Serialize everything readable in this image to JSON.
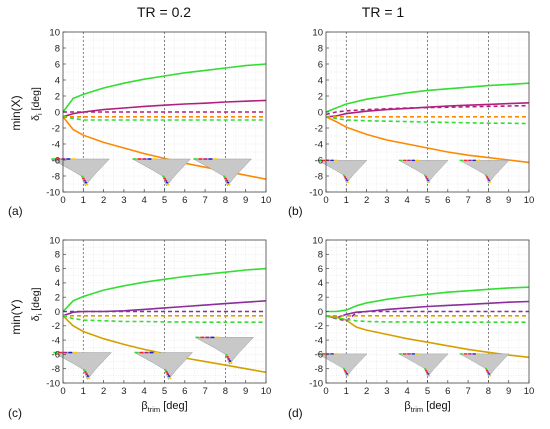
{
  "figure": {
    "col_titles": [
      "TR = 0.2",
      "TR = 1"
    ],
    "row_labels": [
      "min(X)",
      "min(Y)"
    ],
    "ylabel_main": "δ",
    "ylabel_sub": "i",
    "ylabel_unit": " [deg]",
    "xlabel_main": "β",
    "xlabel_sub": "trim",
    "xlabel_unit": " [deg]",
    "colors": {
      "green": "#33dd33",
      "magenta": "#b0207f",
      "orange": "#ff8800",
      "gold": "#d4a000",
      "purple": "#8a2f9a",
      "red": "#ff2020",
      "grid": "#dddddd",
      "vline": "#666666",
      "wing_fill": "#c8c8c8"
    },
    "icons": [
      "wing-planform-icon"
    ]
  },
  "chart_data": [
    {
      "type": "line",
      "panel": "(a)",
      "xlim": [
        0,
        10
      ],
      "ylim": [
        -10,
        10
      ],
      "xticks": [
        0,
        1,
        2,
        3,
        4,
        5,
        6,
        7,
        8,
        9,
        10
      ],
      "yticks": [
        -10,
        -8,
        -6,
        -4,
        -2,
        0,
        2,
        4,
        6,
        8,
        10
      ],
      "grid": true,
      "vlines": [
        1,
        5,
        8
      ],
      "x": [
        0,
        0.5,
        1,
        2,
        3,
        4,
        5,
        6,
        7,
        8,
        9,
        10
      ],
      "series": [
        {
          "color": "green",
          "dash": false,
          "values": [
            0,
            1.7,
            2.2,
            3.0,
            3.6,
            4.1,
            4.5,
            4.9,
            5.2,
            5.5,
            5.8,
            6.0
          ]
        },
        {
          "color": "magenta",
          "dash": false,
          "values": [
            -0.6,
            -0.2,
            0.0,
            0.3,
            0.5,
            0.7,
            0.85,
            1.0,
            1.1,
            1.25,
            1.35,
            1.45
          ]
        },
        {
          "color": "orange",
          "dash": false,
          "values": [
            -0.6,
            -2.2,
            -2.9,
            -3.8,
            -4.5,
            -5.2,
            -5.8,
            -6.4,
            -6.9,
            -7.4,
            -7.9,
            -8.4
          ]
        },
        {
          "color": "magenta",
          "dash": true,
          "values": [
            0,
            0,
            0,
            0,
            0,
            0,
            0,
            0,
            0,
            0,
            0,
            0
          ]
        },
        {
          "color": "orange",
          "dash": true,
          "values": [
            -0.6,
            -0.6,
            -0.6,
            -0.6,
            -0.6,
            -0.6,
            -0.6,
            -0.6,
            -0.6,
            -0.6,
            -0.6,
            -0.6
          ]
        },
        {
          "color": "green",
          "dash": true,
          "values": [
            -0.6,
            -0.8,
            -1.0,
            -1.0,
            -1.0,
            -1.0,
            -1.0,
            -1.0,
            -1.0,
            -1.0,
            -1.0,
            -1.0
          ]
        }
      ],
      "wings": [
        [
          1,
          5,
          8
        ]
      ]
    },
    {
      "type": "line",
      "panel": "(b)",
      "xlim": [
        0,
        10
      ],
      "ylim": [
        -10,
        10
      ],
      "xticks": [
        0,
        1,
        2,
        3,
        4,
        5,
        6,
        7,
        8,
        9,
        10
      ],
      "yticks": [
        -10,
        -8,
        -6,
        -4,
        -2,
        0,
        2,
        4,
        6,
        8,
        10
      ],
      "grid": true,
      "vlines": [
        1,
        5,
        8
      ],
      "x": [
        0,
        0.5,
        1,
        2,
        3,
        4,
        5,
        6,
        7,
        8,
        9,
        10
      ],
      "series": [
        {
          "color": "green",
          "dash": false,
          "values": [
            0,
            0.5,
            1.0,
            1.6,
            2.0,
            2.4,
            2.7,
            2.9,
            3.1,
            3.3,
            3.45,
            3.6
          ]
        },
        {
          "color": "magenta",
          "dash": false,
          "values": [
            -0.6,
            -0.5,
            -0.2,
            0.1,
            0.3,
            0.45,
            0.6,
            0.75,
            0.85,
            0.95,
            1.05,
            1.15
          ]
        },
        {
          "color": "orange",
          "dash": false,
          "values": [
            -0.6,
            -1.2,
            -1.9,
            -2.8,
            -3.5,
            -4.0,
            -4.5,
            -5.0,
            -5.4,
            -5.7,
            -6.0,
            -6.3
          ]
        },
        {
          "color": "magenta",
          "dash": true,
          "values": [
            -0.3,
            0,
            0.15,
            0.3,
            0.4,
            0.5,
            0.55,
            0.6,
            0.65,
            0.7,
            0.75,
            0.8
          ]
        },
        {
          "color": "orange",
          "dash": true,
          "values": [
            -0.6,
            -0.6,
            -0.6,
            -0.6,
            -0.6,
            -0.6,
            -0.6,
            -0.6,
            -0.6,
            -0.6,
            -0.6,
            -0.6
          ]
        },
        {
          "color": "green",
          "dash": true,
          "values": [
            -0.6,
            -0.8,
            -1.0,
            -1.1,
            -1.15,
            -1.2,
            -1.25,
            -1.3,
            -1.35,
            -1.4,
            -1.4,
            -1.45
          ]
        }
      ],
      "wings": [
        [
          1,
          5,
          8
        ]
      ]
    },
    {
      "type": "line",
      "panel": "(c)",
      "xlim": [
        0,
        10
      ],
      "ylim": [
        -10,
        10
      ],
      "xticks": [
        0,
        1,
        2,
        3,
        4,
        5,
        6,
        7,
        8,
        9,
        10
      ],
      "yticks": [
        -10,
        -8,
        -6,
        -4,
        -2,
        0,
        2,
        4,
        6,
        8,
        10
      ],
      "grid": true,
      "vlines": [
        1,
        5,
        8
      ],
      "x": [
        0,
        0.5,
        1,
        2,
        3,
        4,
        5,
        6,
        7,
        8,
        9,
        10
      ],
      "series": [
        {
          "color": "green",
          "dash": false,
          "values": [
            0,
            1.5,
            2.1,
            3.0,
            3.6,
            4.1,
            4.5,
            4.9,
            5.2,
            5.5,
            5.8,
            6.0
          ]
        },
        {
          "color": "purple",
          "dash": false,
          "values": [
            -0.6,
            -0.1,
            0,
            0,
            0.1,
            0.3,
            0.5,
            0.7,
            0.9,
            1.1,
            1.3,
            1.5
          ]
        },
        {
          "color": "gold",
          "dash": false,
          "values": [
            -0.6,
            -2.0,
            -2.8,
            -3.8,
            -4.6,
            -5.3,
            -5.9,
            -6.5,
            -7.0,
            -7.5,
            -8.0,
            -8.5
          ]
        },
        {
          "color": "purple",
          "dash": true,
          "values": [
            0,
            0,
            0,
            0,
            0,
            0,
            0,
            0,
            0,
            0,
            0,
            0
          ]
        },
        {
          "color": "gold",
          "dash": true,
          "values": [
            -0.6,
            -0.6,
            -0.6,
            -0.6,
            -0.6,
            -0.6,
            -0.6,
            -0.6,
            -0.6,
            -0.6,
            -0.6,
            -0.6
          ]
        },
        {
          "color": "green",
          "dash": true,
          "values": [
            -0.6,
            -1.0,
            -1.2,
            -1.3,
            -1.4,
            -1.4,
            -1.45,
            -1.45,
            -1.5,
            -1.5,
            -1.5,
            -1.5
          ]
        }
      ],
      "wings": [
        [
          8
        ],
        [
          1,
          5
        ]
      ]
    },
    {
      "type": "line",
      "panel": "(d)",
      "xlim": [
        0,
        10
      ],
      "ylim": [
        -10,
        10
      ],
      "xticks": [
        0,
        1,
        2,
        3,
        4,
        5,
        6,
        7,
        8,
        9,
        10
      ],
      "yticks": [
        -10,
        -8,
        -6,
        -4,
        -2,
        0,
        2,
        4,
        6,
        8,
        10
      ],
      "grid": true,
      "vlines": [
        1,
        5,
        8
      ],
      "x": [
        0,
        0.5,
        1,
        1.5,
        2,
        3,
        4,
        5,
        6,
        7,
        8,
        9,
        10
      ],
      "series": [
        {
          "color": "green",
          "dash": false,
          "values": [
            0,
            0,
            0.2,
            0.8,
            1.2,
            1.7,
            2.1,
            2.4,
            2.7,
            2.9,
            3.1,
            3.3,
            3.4
          ]
        },
        {
          "color": "purple",
          "dash": false,
          "values": [
            -0.6,
            -0.9,
            -0.4,
            -0.1,
            0,
            0.3,
            0.5,
            0.7,
            0.85,
            1.0,
            1.15,
            1.3,
            1.4
          ]
        },
        {
          "color": "gold",
          "dash": false,
          "values": [
            -0.6,
            -0.8,
            -1.2,
            -2.2,
            -2.6,
            -3.2,
            -3.8,
            -4.3,
            -4.8,
            -5.3,
            -5.7,
            -6.1,
            -6.4
          ]
        },
        {
          "color": "purple",
          "dash": true,
          "values": [
            -0.6,
            -1.0,
            -1.3,
            -0.2,
            0,
            0,
            0,
            0,
            0,
            0,
            0,
            0,
            0
          ]
        },
        {
          "color": "gold",
          "dash": true,
          "values": [
            -0.6,
            -0.6,
            -0.6,
            -0.6,
            -0.6,
            -0.6,
            -0.6,
            -0.6,
            -0.6,
            -0.6,
            -0.6,
            -0.6,
            -0.6
          ]
        },
        {
          "color": "green",
          "dash": true,
          "values": [
            -0.6,
            -0.9,
            -1.1,
            -1.3,
            -1.4,
            -1.45,
            -1.45,
            -1.5,
            -1.5,
            -1.5,
            -1.5,
            -1.5,
            -1.5
          ]
        }
      ],
      "wings": [
        [
          1,
          5,
          8
        ]
      ]
    }
  ]
}
